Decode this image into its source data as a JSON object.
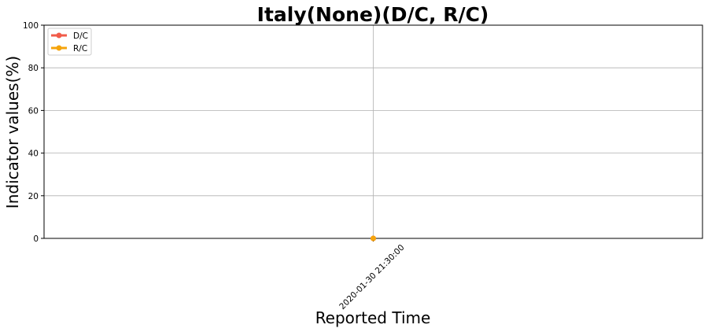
{
  "chart_data": {
    "type": "line",
    "title": "Italy(None)(D/C, R/C)",
    "xlabel": "Reported Time",
    "ylabel": "Indicator values(%)",
    "categories": [
      "2020-01-30 21:30:00"
    ],
    "ylim": [
      0,
      100
    ],
    "yticks": [
      0,
      20,
      40,
      60,
      80,
      100
    ],
    "grid": true,
    "legend_position": "top-left",
    "series": [
      {
        "name": "D/C",
        "values": [
          0
        ],
        "color": "#f15c4a"
      },
      {
        "name": "R/C",
        "values": [
          0
        ],
        "color": "#f5a40c"
      }
    ]
  }
}
